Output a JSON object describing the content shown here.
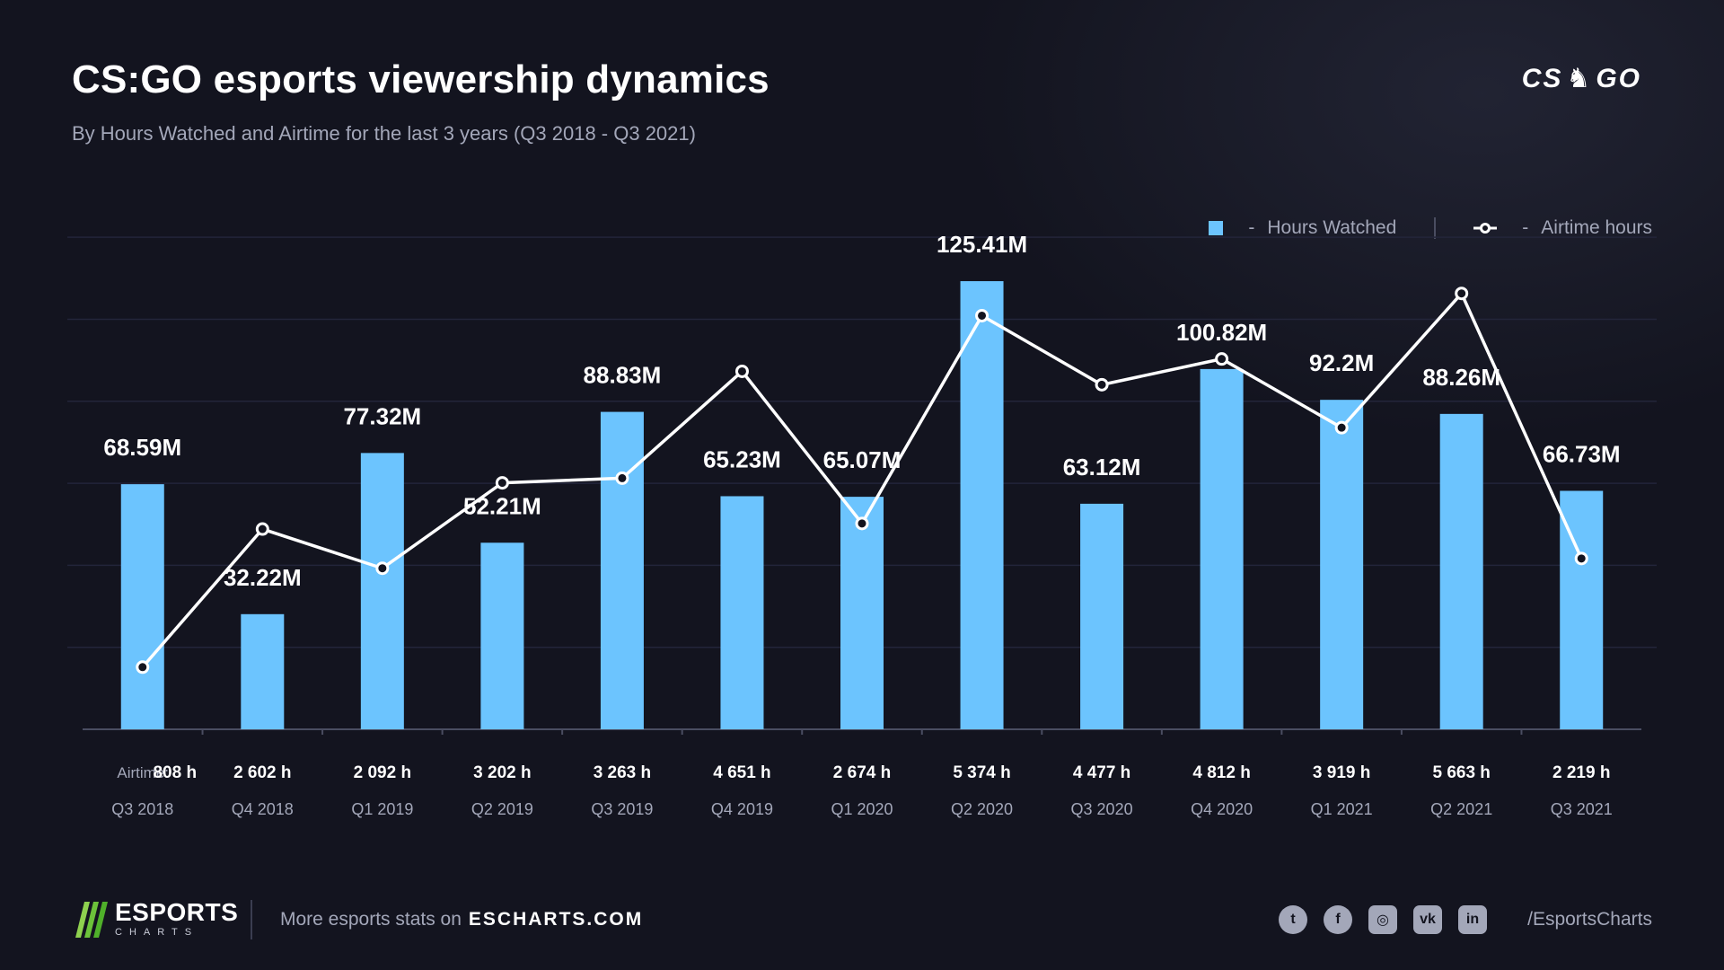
{
  "header": {
    "title": "CS:GO esports viewership dynamics",
    "subtitle": "By Hours Watched and Airtime for the last 3 years (Q3 2018 - Q3 2021)",
    "logo_text_left": "CS",
    "logo_text_right": "GO"
  },
  "legend": {
    "bars_label": "Hours Watched",
    "line_label": "Airtime hours",
    "dash": "-"
  },
  "colors": {
    "bar": "#6cc4fe",
    "line": "#ffffff",
    "background": "#13141f",
    "muted_text": "#a3a7b9"
  },
  "chart_data": {
    "type": "bar",
    "categories": [
      "Q3 2018",
      "Q4 2018",
      "Q1 2019",
      "Q2 2019",
      "Q3 2019",
      "Q4 2019",
      "Q1 2020",
      "Q2 2020",
      "Q3 2020",
      "Q4 2020",
      "Q1 2021",
      "Q2 2021",
      "Q3 2021"
    ],
    "series": [
      {
        "name": "Hours Watched",
        "type": "bar",
        "values": [
          68.59,
          32.22,
          77.32,
          52.21,
          88.83,
          65.23,
          65.07,
          125.41,
          63.12,
          100.82,
          92.2,
          88.26,
          66.73
        ],
        "labels": [
          "68.59M",
          "32.22M",
          "77.32M",
          "52.21M",
          "88.83M",
          "65.23M",
          "65.07M",
          "125.41M",
          "63.12M",
          "100.82M",
          "92.2M",
          "88.26M",
          "66.73M"
        ]
      },
      {
        "name": "Airtime hours",
        "type": "line",
        "values": [
          808,
          2602,
          2092,
          3202,
          3263,
          4651,
          2674,
          5374,
          4477,
          4812,
          3919,
          5663,
          2219
        ],
        "labels": [
          "808 h",
          "2 602 h",
          "2 092 h",
          "3 202 h",
          "3 263 h",
          "4 651 h",
          "2 674 h",
          "5 374 h",
          "4 477 h",
          "4 812 h",
          "3 919 h",
          "5 663 h",
          "2 219 h"
        ]
      }
    ],
    "airtime_row_label": "Airtime:",
    "bar_ylim": [
      0,
      140
    ],
    "line_ylim": [
      0,
      6500
    ],
    "grid": true
  },
  "footer": {
    "brand_name": "ESPORTS",
    "brand_sub": "CHARTS",
    "more_text": "More esports stats on",
    "site": "ESCHARTS.COM",
    "social_icons": [
      "twitter-icon",
      "facebook-icon",
      "instagram-icon",
      "vk-icon",
      "linkedin-icon"
    ],
    "social_glyphs": [
      "t",
      "f",
      "◎",
      "vk",
      "in"
    ],
    "handle": "/EsportsCharts"
  }
}
